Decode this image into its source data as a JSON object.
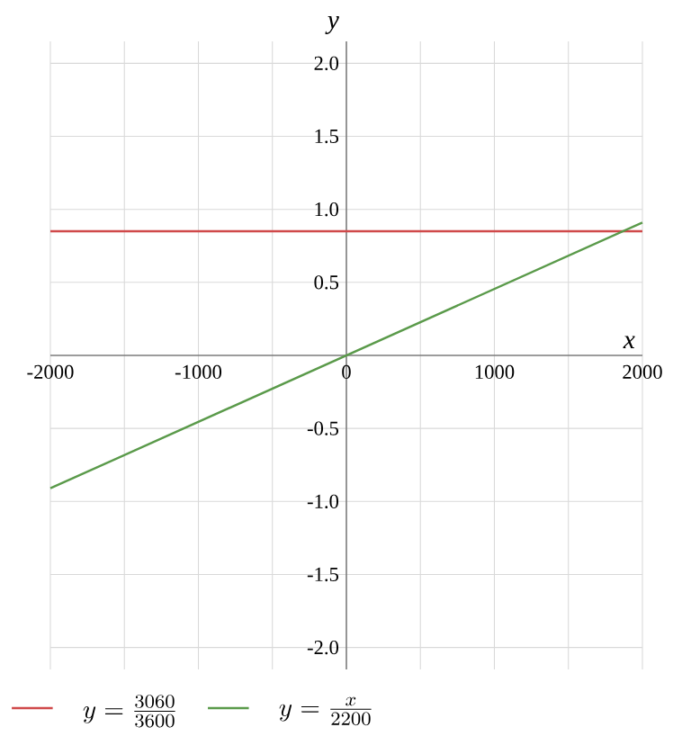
{
  "chart_data": {
    "type": "line",
    "xlabel": "x",
    "ylabel": "y",
    "x": [
      -2000,
      2000
    ],
    "series": [
      {
        "name": "y=\\frac{3060}{3600}",
        "color": "#d0494a",
        "values": [
          0.85,
          0.85
        ]
      },
      {
        "name": "y=\\frac{x}{2200}",
        "color": "#5a9a4a",
        "values": [
          -0.91,
          0.91
        ]
      }
    ],
    "xlim": [
      -2000,
      2000
    ],
    "ylim": [
      -2.15,
      2.15
    ],
    "xticks": [
      {
        "value": -2000,
        "label": "-2000"
      },
      {
        "value": -1500,
        "label": null
      },
      {
        "value": -1000,
        "label": "-1000"
      },
      {
        "value": -500,
        "label": null
      },
      {
        "value": 0,
        "label": "0"
      },
      {
        "value": 500,
        "label": null
      },
      {
        "value": 1000,
        "label": "1000"
      },
      {
        "value": 1500,
        "label": null
      },
      {
        "value": 2000,
        "label": "2000"
      }
    ],
    "yticks": [
      {
        "value": -2,
        "label": "-2.0"
      },
      {
        "value": -1.5,
        "label": "-1.5"
      },
      {
        "value": -1,
        "label": "-1.0"
      },
      {
        "value": -0.5,
        "label": "-0.5"
      },
      {
        "value": 0,
        "label": null
      },
      {
        "value": 0.5,
        "label": "0.5"
      },
      {
        "value": 1,
        "label": "1.0"
      },
      {
        "value": 1.5,
        "label": "1.5"
      },
      {
        "value": 2,
        "label": "2.0"
      }
    ],
    "grid": true,
    "legend": "bottom left"
  }
}
